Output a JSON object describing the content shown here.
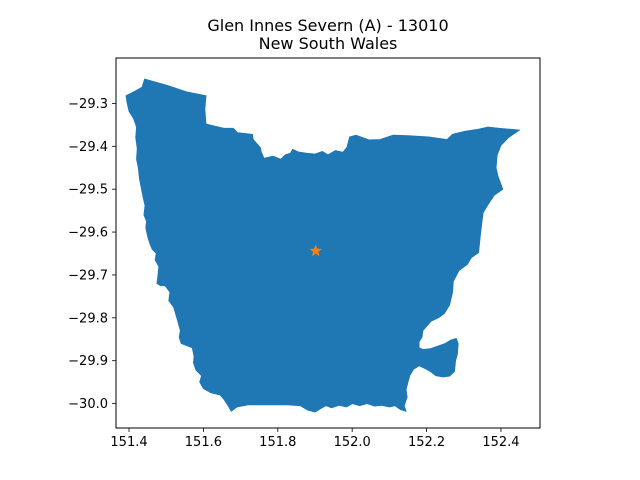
{
  "figure": {
    "title_line1": "Glen Innes Severn (A) - 13010",
    "title_line2": "New South Wales"
  },
  "chart_data": {
    "type": "map",
    "title": "Glen Innes Severn (A) - 13010\nNew South Wales",
    "xlabel": "",
    "ylabel": "",
    "xlim": [
      151.365,
      152.505
    ],
    "ylim": [
      -30.057,
      -29.194
    ],
    "xticks": [
      151.4,
      151.6,
      151.8,
      152.0,
      152.2,
      152.4
    ],
    "xtick_labels": [
      "151.4",
      "151.6",
      "151.8",
      "152.0",
      "152.2",
      "152.4"
    ],
    "yticks": [
      -29.3,
      -29.4,
      -29.5,
      -29.6,
      -29.7,
      -29.8,
      -29.9,
      -30.0
    ],
    "ytick_labels": [
      "−29.3",
      "−29.4",
      "−29.5",
      "−29.6",
      "−29.7",
      "−29.8",
      "−29.9",
      "−30.0"
    ],
    "grid": false,
    "region_color": "#1f77b4",
    "marker_color": "#ff7f0e",
    "marker_icon": "star",
    "centroid": {
      "x": 151.902,
      "y": -29.644
    },
    "boundary": [
      [
        151.442,
        -29.243
      ],
      [
        151.503,
        -29.258
      ],
      [
        151.555,
        -29.273
      ],
      [
        151.607,
        -29.282
      ],
      [
        151.604,
        -29.314
      ],
      [
        151.607,
        -29.348
      ],
      [
        151.625,
        -29.352
      ],
      [
        151.655,
        -29.358
      ],
      [
        151.68,
        -29.358
      ],
      [
        151.692,
        -29.368
      ],
      [
        151.732,
        -29.372
      ],
      [
        151.734,
        -29.384
      ],
      [
        151.753,
        -29.403
      ],
      [
        151.756,
        -29.414
      ],
      [
        151.763,
        -29.428
      ],
      [
        151.787,
        -29.423
      ],
      [
        151.808,
        -29.43
      ],
      [
        151.82,
        -29.42
      ],
      [
        151.834,
        -29.416
      ],
      [
        151.84,
        -29.407
      ],
      [
        151.855,
        -29.413
      ],
      [
        151.876,
        -29.416
      ],
      [
        151.9,
        -29.418
      ],
      [
        151.92,
        -29.412
      ],
      [
        151.935,
        -29.42
      ],
      [
        151.955,
        -29.41
      ],
      [
        151.975,
        -29.414
      ],
      [
        151.986,
        -29.402
      ],
      [
        151.993,
        -29.378
      ],
      [
        152.01,
        -29.374
      ],
      [
        152.045,
        -29.385
      ],
      [
        152.075,
        -29.384
      ],
      [
        152.11,
        -29.374
      ],
      [
        152.15,
        -29.375
      ],
      [
        152.205,
        -29.378
      ],
      [
        152.255,
        -29.384
      ],
      [
        152.27,
        -29.372
      ],
      [
        152.303,
        -29.365
      ],
      [
        152.34,
        -29.36
      ],
      [
        152.365,
        -29.355
      ],
      [
        152.395,
        -29.358
      ],
      [
        152.45,
        -29.362
      ],
      [
        152.42,
        -29.38
      ],
      [
        152.4,
        -29.398
      ],
      [
        152.39,
        -29.42
      ],
      [
        152.387,
        -29.45
      ],
      [
        152.392,
        -29.47
      ],
      [
        152.405,
        -29.5
      ],
      [
        152.382,
        -29.514
      ],
      [
        152.366,
        -29.535
      ],
      [
        152.352,
        -29.555
      ],
      [
        152.345,
        -29.605
      ],
      [
        152.34,
        -29.648
      ],
      [
        152.32,
        -29.66
      ],
      [
        152.31,
        -29.675
      ],
      [
        152.287,
        -29.69
      ],
      [
        152.272,
        -29.715
      ],
      [
        152.27,
        -29.74
      ],
      [
        152.262,
        -29.77
      ],
      [
        152.248,
        -29.79
      ],
      [
        152.232,
        -29.8
      ],
      [
        152.212,
        -29.808
      ],
      [
        152.2,
        -29.82
      ],
      [
        152.19,
        -29.83
      ],
      [
        152.188,
        -29.845
      ],
      [
        152.18,
        -29.856
      ],
      [
        152.18,
        -29.87
      ],
      [
        152.19,
        -29.874
      ],
      [
        152.21,
        -29.872
      ],
      [
        152.23,
        -29.866
      ],
      [
        152.25,
        -29.86
      ],
      [
        152.265,
        -29.852
      ],
      [
        152.28,
        -29.848
      ],
      [
        152.285,
        -29.86
      ],
      [
        152.283,
        -29.885
      ],
      [
        152.278,
        -29.9
      ],
      [
        152.275,
        -29.925
      ],
      [
        152.262,
        -29.936
      ],
      [
        152.245,
        -29.938
      ],
      [
        152.225,
        -29.935
      ],
      [
        152.21,
        -29.925
      ],
      [
        152.195,
        -29.918
      ],
      [
        152.18,
        -29.912
      ],
      [
        152.165,
        -29.92
      ],
      [
        152.155,
        -29.935
      ],
      [
        152.15,
        -29.95
      ],
      [
        152.145,
        -29.968
      ],
      [
        152.148,
        -29.985
      ],
      [
        152.14,
        -30.005
      ],
      [
        152.145,
        -30.018
      ],
      [
        152.13,
        -30.014
      ],
      [
        152.115,
        -30.005
      ],
      [
        152.1,
        -30.008
      ],
      [
        152.08,
        -30.004
      ],
      [
        152.06,
        -30.006
      ],
      [
        152.04,
        -30.0
      ],
      [
        152.02,
        -30.005
      ],
      [
        152.0,
        -30.0
      ],
      [
        151.985,
        -30.008
      ],
      [
        151.965,
        -30.004
      ],
      [
        151.945,
        -30.01
      ],
      [
        151.93,
        -30.005
      ],
      [
        151.915,
        -30.012
      ],
      [
        151.9,
        -30.02
      ],
      [
        151.88,
        -30.015
      ],
      [
        151.86,
        -30.005
      ],
      [
        151.825,
        -30.003
      ],
      [
        151.79,
        -30.003
      ],
      [
        151.755,
        -30.003
      ],
      [
        151.72,
        -30.003
      ],
      [
        151.69,
        -30.008
      ],
      [
        151.675,
        -30.018
      ],
      [
        151.666,
        -30.005
      ],
      [
        151.655,
        -29.99
      ],
      [
        151.645,
        -29.98
      ],
      [
        151.62,
        -29.975
      ],
      [
        151.6,
        -29.965
      ],
      [
        151.59,
        -29.95
      ],
      [
        151.595,
        -29.935
      ],
      [
        151.58,
        -29.922
      ],
      [
        151.573,
        -29.905
      ],
      [
        151.575,
        -29.89
      ],
      [
        151.57,
        -29.87
      ],
      [
        151.54,
        -29.86
      ],
      [
        151.535,
        -29.845
      ],
      [
        151.538,
        -29.83
      ],
      [
        151.53,
        -29.805
      ],
      [
        151.525,
        -29.79
      ],
      [
        151.52,
        -29.775
      ],
      [
        151.507,
        -29.76
      ],
      [
        151.51,
        -29.74
      ],
      [
        151.497,
        -29.725
      ],
      [
        151.485,
        -29.725
      ],
      [
        151.475,
        -29.72
      ],
      [
        151.478,
        -29.7
      ],
      [
        151.48,
        -29.68
      ],
      [
        151.47,
        -29.665
      ],
      [
        151.473,
        -29.65
      ],
      [
        151.462,
        -29.64
      ],
      [
        151.455,
        -29.625
      ],
      [
        151.45,
        -29.61
      ],
      [
        151.445,
        -29.59
      ],
      [
        151.447,
        -29.575
      ],
      [
        151.44,
        -29.56
      ],
      [
        151.443,
        -29.538
      ],
      [
        151.438,
        -29.52
      ],
      [
        151.433,
        -29.498
      ],
      [
        151.428,
        -29.475
      ],
      [
        151.425,
        -29.45
      ],
      [
        151.42,
        -29.43
      ],
      [
        151.422,
        -29.405
      ],
      [
        151.418,
        -29.38
      ],
      [
        151.42,
        -29.355
      ],
      [
        151.412,
        -29.335
      ],
      [
        151.4,
        -29.318
      ],
      [
        151.395,
        -29.3
      ],
      [
        151.392,
        -29.282
      ],
      [
        151.415,
        -29.272
      ],
      [
        151.435,
        -29.262
      ],
      [
        151.442,
        -29.243
      ]
    ]
  }
}
